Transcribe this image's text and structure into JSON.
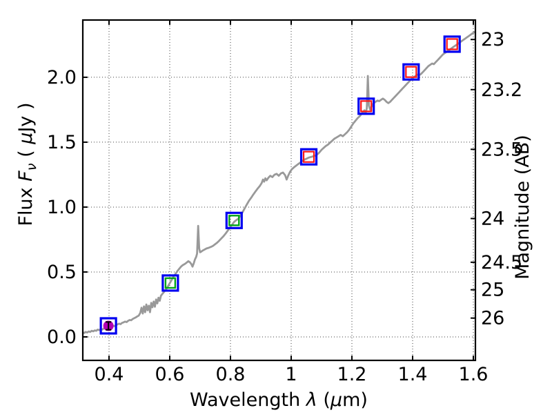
{
  "figure": {
    "background": "#ffffff",
    "xlabel": "Wavelength  λ (μm)",
    "ylabel_left": "Flux  Fν  ( μJy )",
    "ylabel_right": "Magnitude (AB)",
    "xlabel_parts": [
      {
        "t": "Wavelength  "
      },
      {
        "t": "λ",
        "italic": true
      },
      {
        "t": " ("
      },
      {
        "t": "μ",
        "italic": true
      },
      {
        "t": "m)"
      }
    ],
    "ylabel_left_parts": [
      {
        "t": "Flux  "
      },
      {
        "t": "F",
        "italic": true
      },
      {
        "t": "ν",
        "italic": true,
        "sub": true
      },
      {
        "t": "  ( "
      },
      {
        "t": "μ",
        "italic": true
      },
      {
        "t": "Jy )"
      }
    ],
    "ylabel_right_parts": [
      {
        "t": "Magnitude (AB)"
      }
    ]
  },
  "chart_data": {
    "type": "line",
    "title": "",
    "xlabel": "Wavelength λ (μm)",
    "ylabel": "Flux Fν (μJy)",
    "ylabel_right": "Magnitude (AB)",
    "xlim": [
      0.3136,
      1.6068
    ],
    "ylim": [
      -0.181,
      2.441
    ],
    "grid": "dotted, on both x and y major ticks of the flux/wavelength axes",
    "legend": "none",
    "x_ticks": [
      {
        "value": 0.4,
        "label": "0.4"
      },
      {
        "value": 0.6,
        "label": "0.6"
      },
      {
        "value": 0.8,
        "label": "0.8"
      },
      {
        "value": 1.0,
        "label": "1"
      },
      {
        "value": 1.2,
        "label": "1.2"
      },
      {
        "value": 1.4,
        "label": "1.4"
      },
      {
        "value": 1.6,
        "label": "1.6"
      }
    ],
    "y_ticks_left": [
      {
        "value": 0.0,
        "label": "0.0"
      },
      {
        "value": 0.5,
        "label": "0.5"
      },
      {
        "value": 1.0,
        "label": "1.0"
      },
      {
        "value": 1.5,
        "label": "1.5"
      },
      {
        "value": 2.0,
        "label": "2.0"
      }
    ],
    "y_ticks_right_magnitude": [
      {
        "label": "23",
        "flux": 2.291
      },
      {
        "label": "23.2",
        "flux": 1.905
      },
      {
        "label": "23.5",
        "flux": 1.445
      },
      {
        "label": "24",
        "flux": 0.912
      },
      {
        "label": "24.5",
        "flux": 0.575
      },
      {
        "label": "25",
        "flux": 0.363
      },
      {
        "label": "26",
        "flux": 0.145
      }
    ],
    "colors": {
      "spectrum": "#999999",
      "outer_square": "#0000f0",
      "green_square": "#00a316",
      "red_square": "#ff1414",
      "magenta_circle": "#b400b4",
      "error_bar": "#000000",
      "grid": "#3c3c3c",
      "axis": "#000000"
    },
    "photometry": [
      {
        "x": 0.398,
        "y": 0.085,
        "outer": "blue-open-square",
        "inner": "magenta-filled-circle",
        "yerr": 0.03
      },
      {
        "x": 0.602,
        "y": 0.415,
        "outer": "blue-open-square",
        "inner": "green-open-square"
      },
      {
        "x": 0.812,
        "y": 0.897,
        "outer": "blue-open-square",
        "inner": "green-open-square"
      },
      {
        "x": 1.058,
        "y": 1.387,
        "outer": "blue-open-square",
        "inner": "red-open-square"
      },
      {
        "x": 1.247,
        "y": 1.777,
        "outer": "blue-open-square",
        "inner": "red-open-square"
      },
      {
        "x": 1.395,
        "y": 2.041,
        "outer": "blue-open-square",
        "inner": "red-open-square"
      },
      {
        "x": 1.53,
        "y": 2.255,
        "outer": "blue-open-square",
        "inner": "red-open-square"
      }
    ],
    "spectrum_points": [
      [
        0.313,
        0.034
      ],
      [
        0.318,
        0.03
      ],
      [
        0.323,
        0.038
      ],
      [
        0.328,
        0.034
      ],
      [
        0.333,
        0.042
      ],
      [
        0.338,
        0.038
      ],
      [
        0.343,
        0.047
      ],
      [
        0.348,
        0.043
      ],
      [
        0.353,
        0.05
      ],
      [
        0.358,
        0.047
      ],
      [
        0.363,
        0.056
      ],
      [
        0.368,
        0.052
      ],
      [
        0.373,
        0.06
      ],
      [
        0.378,
        0.057
      ],
      [
        0.383,
        0.065
      ],
      [
        0.388,
        0.062
      ],
      [
        0.393,
        0.071
      ],
      [
        0.398,
        0.075
      ],
      [
        0.403,
        0.08
      ],
      [
        0.408,
        0.078
      ],
      [
        0.413,
        0.086
      ],
      [
        0.418,
        0.083
      ],
      [
        0.423,
        0.092
      ],
      [
        0.428,
        0.096
      ],
      [
        0.433,
        0.102
      ],
      [
        0.438,
        0.098
      ],
      [
        0.443,
        0.108
      ],
      [
        0.448,
        0.112
      ],
      [
        0.453,
        0.118
      ],
      [
        0.458,
        0.114
      ],
      [
        0.463,
        0.124
      ],
      [
        0.468,
        0.13
      ],
      [
        0.473,
        0.128
      ],
      [
        0.478,
        0.138
      ],
      [
        0.483,
        0.144
      ],
      [
        0.488,
        0.15
      ],
      [
        0.493,
        0.158
      ],
      [
        0.498,
        0.164
      ],
      [
        0.503,
        0.185
      ],
      [
        0.507,
        0.225
      ],
      [
        0.511,
        0.18
      ],
      [
        0.515,
        0.235
      ],
      [
        0.519,
        0.19
      ],
      [
        0.523,
        0.25
      ],
      [
        0.527,
        0.205
      ],
      [
        0.531,
        0.24
      ],
      [
        0.535,
        0.19
      ],
      [
        0.539,
        0.262
      ],
      [
        0.543,
        0.228
      ],
      [
        0.547,
        0.272
      ],
      [
        0.551,
        0.232
      ],
      [
        0.555,
        0.288
      ],
      [
        0.559,
        0.258
      ],
      [
        0.563,
        0.302
      ],
      [
        0.567,
        0.278
      ],
      [
        0.571,
        0.318
      ],
      [
        0.576,
        0.332
      ],
      [
        0.581,
        0.346
      ],
      [
        0.586,
        0.362
      ],
      [
        0.591,
        0.378
      ],
      [
        0.596,
        0.398
      ],
      [
        0.601,
        0.418
      ],
      [
        0.607,
        0.442
      ],
      [
        0.613,
        0.466
      ],
      [
        0.619,
        0.486
      ],
      [
        0.625,
        0.506
      ],
      [
        0.631,
        0.524
      ],
      [
        0.637,
        0.541
      ],
      [
        0.643,
        0.553
      ],
      [
        0.649,
        0.561
      ],
      [
        0.655,
        0.571
      ],
      [
        0.661,
        0.583
      ],
      [
        0.666,
        0.576
      ],
      [
        0.671,
        0.561
      ],
      [
        0.675,
        0.541
      ],
      [
        0.679,
        0.566
      ],
      [
        0.683,
        0.596
      ],
      [
        0.687,
        0.616
      ],
      [
        0.69,
        0.641
      ],
      [
        0.6935,
        0.855
      ],
      [
        0.697,
        0.682
      ],
      [
        0.7,
        0.652
      ],
      [
        0.704,
        0.657
      ],
      [
        0.709,
        0.666
      ],
      [
        0.715,
        0.673
      ],
      [
        0.721,
        0.681
      ],
      [
        0.728,
        0.686
      ],
      [
        0.735,
        0.693
      ],
      [
        0.742,
        0.701
      ],
      [
        0.749,
        0.713
      ],
      [
        0.756,
        0.726
      ],
      [
        0.763,
        0.741
      ],
      [
        0.77,
        0.759
      ],
      [
        0.777,
        0.776
      ],
      [
        0.784,
        0.796
      ],
      [
        0.791,
        0.819
      ],
      [
        0.798,
        0.841
      ],
      [
        0.805,
        0.863
      ],
      [
        0.812,
        0.886
      ],
      [
        0.819,
        0.899
      ],
      [
        0.826,
        0.911
      ],
      [
        0.833,
        0.936
      ],
      [
        0.84,
        0.961
      ],
      [
        0.847,
        0.991
      ],
      [
        0.854,
        1.021
      ],
      [
        0.861,
        1.049
      ],
      [
        0.868,
        1.071
      ],
      [
        0.875,
        1.096
      ],
      [
        0.882,
        1.119
      ],
      [
        0.889,
        1.141
      ],
      [
        0.896,
        1.161
      ],
      [
        0.903,
        1.186
      ],
      [
        0.907,
        1.212
      ],
      [
        0.911,
        1.196
      ],
      [
        0.915,
        1.222
      ],
      [
        0.919,
        1.206
      ],
      [
        0.925,
        1.226
      ],
      [
        0.931,
        1.241
      ],
      [
        0.938,
        1.231
      ],
      [
        0.945,
        1.249
      ],
      [
        0.952,
        1.256
      ],
      [
        0.959,
        1.241
      ],
      [
        0.966,
        1.259
      ],
      [
        0.973,
        1.266
      ],
      [
        0.98,
        1.246
      ],
      [
        0.985,
        1.212
      ],
      [
        0.99,
        1.241
      ],
      [
        0.996,
        1.271
      ],
      [
        1.002,
        1.291
      ],
      [
        1.009,
        1.306
      ],
      [
        1.016,
        1.319
      ],
      [
        1.023,
        1.331
      ],
      [
        1.03,
        1.343
      ],
      [
        1.037,
        1.356
      ],
      [
        1.044,
        1.366
      ],
      [
        1.051,
        1.373
      ],
      [
        1.058,
        1.381
      ],
      [
        1.065,
        1.386
      ],
      [
        1.072,
        1.391
      ],
      [
        1.079,
        1.396
      ],
      [
        1.086,
        1.406
      ],
      [
        1.093,
        1.421
      ],
      [
        1.1,
        1.441
      ],
      [
        1.107,
        1.456
      ],
      [
        1.114,
        1.471
      ],
      [
        1.121,
        1.481
      ],
      [
        1.128,
        1.496
      ],
      [
        1.135,
        1.511
      ],
      [
        1.142,
        1.526
      ],
      [
        1.149,
        1.536
      ],
      [
        1.156,
        1.546
      ],
      [
        1.163,
        1.556
      ],
      [
        1.17,
        1.546
      ],
      [
        1.177,
        1.561
      ],
      [
        1.184,
        1.576
      ],
      [
        1.191,
        1.596
      ],
      [
        1.198,
        1.621
      ],
      [
        1.205,
        1.646
      ],
      [
        1.212,
        1.666
      ],
      [
        1.219,
        1.686
      ],
      [
        1.226,
        1.701
      ],
      [
        1.231,
        1.716
      ],
      [
        1.236,
        1.731
      ],
      [
        1.241,
        1.746
      ],
      [
        1.245,
        1.721
      ],
      [
        1.249,
        1.761
      ],
      [
        1.2525,
        2.01
      ],
      [
        1.256,
        1.781
      ],
      [
        1.26,
        1.751
      ],
      [
        1.264,
        1.771
      ],
      [
        1.268,
        1.791
      ],
      [
        1.272,
        1.801
      ],
      [
        1.278,
        1.811
      ],
      [
        1.284,
        1.821
      ],
      [
        1.29,
        1.816
      ],
      [
        1.296,
        1.826
      ],
      [
        1.302,
        1.836
      ],
      [
        1.308,
        1.826
      ],
      [
        1.314,
        1.811
      ],
      [
        1.32,
        1.801
      ],
      [
        1.326,
        1.811
      ],
      [
        1.332,
        1.826
      ],
      [
        1.338,
        1.841
      ],
      [
        1.344,
        1.856
      ],
      [
        1.35,
        1.871
      ],
      [
        1.356,
        1.886
      ],
      [
        1.362,
        1.901
      ],
      [
        1.368,
        1.916
      ],
      [
        1.374,
        1.931
      ],
      [
        1.38,
        1.946
      ],
      [
        1.386,
        1.961
      ],
      [
        1.392,
        1.976
      ],
      [
        1.398,
        1.991
      ],
      [
        1.404,
        2.001
      ],
      [
        1.41,
        2.011
      ],
      [
        1.416,
        2.021
      ],
      [
        1.422,
        2.016
      ],
      [
        1.428,
        2.026
      ],
      [
        1.434,
        2.041
      ],
      [
        1.44,
        2.056
      ],
      [
        1.446,
        2.071
      ],
      [
        1.452,
        2.086
      ],
      [
        1.458,
        2.096
      ],
      [
        1.464,
        2.106
      ],
      [
        1.47,
        2.101
      ],
      [
        1.476,
        2.116
      ],
      [
        1.482,
        2.131
      ],
      [
        1.488,
        2.146
      ],
      [
        1.494,
        2.161
      ],
      [
        1.5,
        2.176
      ],
      [
        1.506,
        2.186
      ],
      [
        1.512,
        2.196
      ],
      [
        1.518,
        2.206
      ],
      [
        1.524,
        2.216
      ],
      [
        1.53,
        2.226
      ],
      [
        1.536,
        2.236
      ],
      [
        1.542,
        2.246
      ],
      [
        1.548,
        2.256
      ],
      [
        1.554,
        2.266
      ],
      [
        1.56,
        2.276
      ],
      [
        1.566,
        2.286
      ],
      [
        1.572,
        2.296
      ],
      [
        1.578,
        2.306
      ],
      [
        1.584,
        2.316
      ],
      [
        1.59,
        2.326
      ],
      [
        1.596,
        2.336
      ],
      [
        1.602,
        2.346
      ],
      [
        1.607,
        2.352
      ]
    ]
  }
}
